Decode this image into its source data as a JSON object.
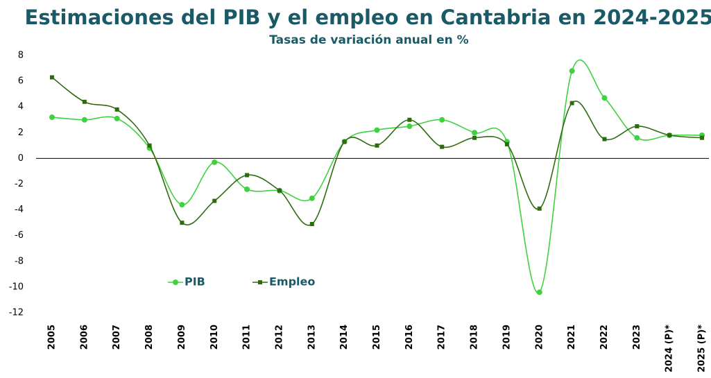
{
  "chart_data": {
    "type": "line",
    "title": "Estimaciones del PIB y el empleo en Cantabria en 2024-2025",
    "subtitle": "Tasas de variación anual en %",
    "categories": [
      "2005",
      "2006",
      "2007",
      "2008",
      "2009",
      "2010",
      "2011",
      "2012",
      "2013",
      "2014",
      "2015",
      "2016",
      "2017",
      "2018",
      "2019",
      "2020",
      "2021",
      "2022",
      "2023",
      "2024 (P)*",
      "2025 (P)*"
    ],
    "series": [
      {
        "name": "PIB",
        "color": "#3fd13f",
        "values": [
          3.2,
          3.0,
          3.1,
          0.8,
          -3.6,
          -0.3,
          -2.4,
          -2.5,
          -3.1,
          1.3,
          2.2,
          2.5,
          3.0,
          2.0,
          1.3,
          -10.4,
          6.8,
          4.7,
          1.6,
          1.8,
          1.8
        ]
      },
      {
        "name": "Empleo",
        "color": "#2e6b0e",
        "values": [
          6.3,
          4.4,
          3.8,
          1.0,
          -5.0,
          -3.3,
          -1.3,
          -2.5,
          -5.1,
          1.3,
          1.0,
          3.0,
          0.9,
          1.6,
          1.1,
          -3.9,
          4.3,
          1.5,
          2.5,
          1.8,
          1.6
        ]
      }
    ],
    "ylim": [
      -12,
      8
    ],
    "yticks": [
      -12,
      -10,
      -8,
      -6,
      -4,
      -2,
      0,
      2,
      4,
      6,
      8
    ],
    "smooth": true
  }
}
